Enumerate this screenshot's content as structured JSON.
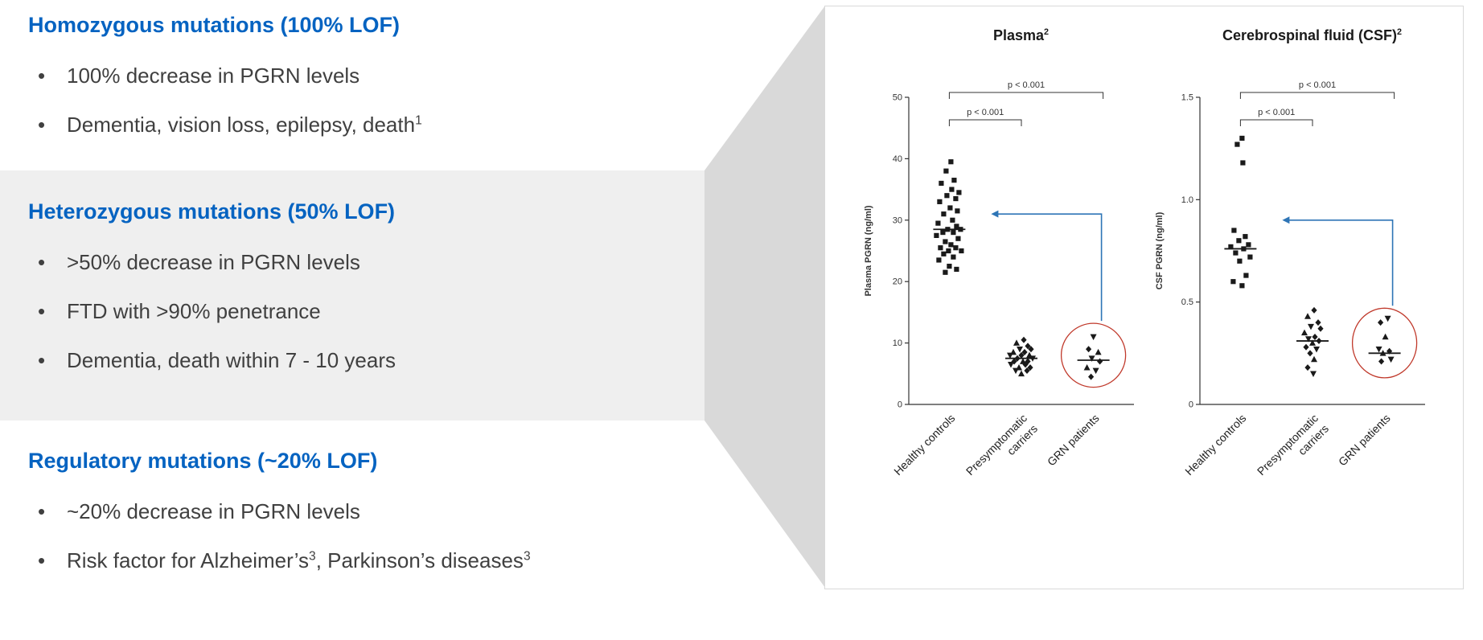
{
  "colors": {
    "heading_blue": "#0563C1",
    "body_text": "#404040",
    "band_gray": "#EFEFEF",
    "wedge_gray": "#D9D9D9",
    "panel_border": "#D9D9D9",
    "axis_color": "#333333",
    "marker_color": "#1A1A1A",
    "arrow_blue": "#2E75B6",
    "circle_red": "#C0392B"
  },
  "sections": [
    {
      "heading": "Homozygous mutations (100% LOF)",
      "bullets": [
        [
          {
            "t": "100% decrease in PGRN levels"
          }
        ],
        [
          {
            "t": "Dementia, vision loss, epilepsy, death"
          },
          {
            "sup": "1"
          }
        ]
      ]
    },
    {
      "heading": "Heterozygous mutations (50% LOF)",
      "bullets": [
        [
          {
            "t": ">50% decrease in PGRN levels"
          }
        ],
        [
          {
            "t": "FTD with >90% penetrance"
          }
        ],
        [
          {
            "t": "Dementia, death within 7 - 10 years"
          }
        ]
      ]
    },
    {
      "heading": "Regulatory mutations (~20% LOF)",
      "bullets": [
        [
          {
            "t": "~20% decrease in PGRN levels"
          }
        ],
        [
          {
            "t": "Risk factor for Alzheimer’s"
          },
          {
            "sup": "3"
          },
          {
            "t": ", Parkinson’s diseases"
          },
          {
            "sup": "3"
          }
        ]
      ]
    }
  ],
  "chart_data": [
    {
      "type": "scatter",
      "title": "Plasma",
      "title_segments": [
        {
          "t": "Plasma"
        },
        {
          "sup": "2"
        }
      ],
      "ylabel": "Plasma PGRN (ng/ml)",
      "ylim": [
        0,
        50
      ],
      "yticks": [
        {
          "v": 0,
          "label": "0"
        },
        {
          "v": 10,
          "label": "10"
        },
        {
          "v": 20,
          "label": "20"
        },
        {
          "v": 30,
          "label": "30"
        },
        {
          "v": 40,
          "label": "40"
        },
        {
          "v": 50,
          "label": "50"
        }
      ],
      "categories": [
        "Healthy controls",
        "Presymptomatic\ncarriers",
        "GRN patients"
      ],
      "series": [
        {
          "name": "Healthy controls",
          "marker": "square",
          "mean": 28.5,
          "points": [
            [
              2,
              39.5
            ],
            [
              -4,
              38
            ],
            [
              6,
              36.5
            ],
            [
              -10,
              36
            ],
            [
              3,
              35
            ],
            [
              12,
              34.5
            ],
            [
              -3,
              34
            ],
            [
              8,
              33.5
            ],
            [
              -12,
              33
            ],
            [
              1,
              32
            ],
            [
              10,
              31.5
            ],
            [
              -7,
              31
            ],
            [
              4,
              30
            ],
            [
              -14,
              29.5
            ],
            [
              9,
              29
            ],
            [
              -2,
              28.5
            ],
            [
              14,
              28.5
            ],
            [
              -8,
              28
            ],
            [
              5,
              28
            ],
            [
              -16,
              27.5
            ],
            [
              11,
              27
            ],
            [
              -5,
              26.5
            ],
            [
              2,
              26
            ],
            [
              -11,
              25.5
            ],
            [
              8,
              25.5
            ],
            [
              -1,
              25
            ],
            [
              15,
              25
            ],
            [
              -7,
              24.5
            ],
            [
              5,
              24
            ],
            [
              -13,
              23.5
            ],
            [
              0,
              22.5
            ],
            [
              9,
              22
            ],
            [
              -5,
              21.5
            ]
          ]
        },
        {
          "name": "Presymptomatic carriers",
          "marker": "mix",
          "mean": 7.5,
          "points": [
            [
              3,
              10.5
            ],
            [
              -6,
              10
            ],
            [
              8,
              9.5
            ],
            [
              -2,
              9
            ],
            [
              12,
              9
            ],
            [
              -10,
              8.5
            ],
            [
              4,
              8.5
            ],
            [
              -14,
              8
            ],
            [
              0,
              8
            ],
            [
              10,
              8
            ],
            [
              -5,
              7.5
            ],
            [
              14,
              7.5
            ],
            [
              -9,
              7
            ],
            [
              2,
              7
            ],
            [
              8,
              7
            ],
            [
              -13,
              6.5
            ],
            [
              5,
              6.5
            ],
            [
              -3,
              6
            ],
            [
              11,
              6
            ],
            [
              -7,
              5.5
            ],
            [
              7,
              5.5
            ],
            [
              0,
              5
            ]
          ]
        },
        {
          "name": "GRN patients",
          "marker": "mix2",
          "mean": 7.2,
          "points": [
            [
              0,
              11
            ],
            [
              -6,
              9
            ],
            [
              6,
              8.5
            ],
            [
              -2,
              7.5
            ],
            [
              8,
              7
            ],
            [
              -8,
              6
            ],
            [
              3,
              5.5
            ],
            [
              -3,
              4.5
            ]
          ]
        }
      ],
      "brackets": [
        {
          "from": 0,
          "to": 1,
          "label": "p < 0.001",
          "level": 1
        },
        {
          "from": 0,
          "to": 2,
          "label": "p < 0.001",
          "level": 2
        }
      ],
      "annotations": {
        "circle": {
          "group_index": 2,
          "center_value": 8,
          "ry_value": 5.2
        },
        "arrow": {
          "elbow_value": 31,
          "tip_group": 0,
          "tip_dx": 52
        }
      }
    },
    {
      "type": "scatter",
      "title": "Cerebrospinal fluid (CSF)",
      "title_segments": [
        {
          "t": "Cerebrospinal fluid (CSF)"
        },
        {
          "sup": "2"
        }
      ],
      "ylabel": "CSF PGRN (ng/ml)",
      "ylim": [
        0,
        1.5
      ],
      "yticks": [
        {
          "v": 0,
          "label": "0"
        },
        {
          "v": 0.5,
          "label": "0.5"
        },
        {
          "v": 1.0,
          "label": "1.0"
        },
        {
          "v": 1.5,
          "label": "1.5"
        }
      ],
      "categories": [
        "Healthy controls",
        "Presymptomatic\ncarriers",
        "GRN patients"
      ],
      "series": [
        {
          "name": "Healthy controls",
          "marker": "square",
          "mean": 0.76,
          "points": [
            [
              2,
              1.3
            ],
            [
              -4,
              1.27
            ],
            [
              3,
              1.18
            ],
            [
              -8,
              0.85
            ],
            [
              6,
              0.82
            ],
            [
              -2,
              0.8
            ],
            [
              10,
              0.78
            ],
            [
              -12,
              0.77
            ],
            [
              4,
              0.76
            ],
            [
              -6,
              0.74
            ],
            [
              12,
              0.72
            ],
            [
              -1,
              0.7
            ],
            [
              7,
              0.63
            ],
            [
              -9,
              0.6
            ],
            [
              2,
              0.58
            ]
          ]
        },
        {
          "name": "Presymptomatic carriers",
          "marker": "mix",
          "mean": 0.31,
          "points": [
            [
              2,
              0.46
            ],
            [
              -6,
              0.43
            ],
            [
              7,
              0.4
            ],
            [
              -2,
              0.38
            ],
            [
              10,
              0.37
            ],
            [
              -10,
              0.35
            ],
            [
              3,
              0.33
            ],
            [
              -5,
              0.32
            ],
            [
              8,
              0.31
            ],
            [
              0,
              0.3
            ],
            [
              -8,
              0.28
            ],
            [
              5,
              0.27
            ],
            [
              -3,
              0.25
            ],
            [
              2,
              0.22
            ],
            [
              -6,
              0.18
            ],
            [
              1,
              0.15
            ]
          ]
        },
        {
          "name": "GRN patients",
          "marker": "mix2",
          "mean": 0.25,
          "points": [
            [
              4,
              0.42
            ],
            [
              -5,
              0.4
            ],
            [
              1,
              0.33
            ],
            [
              -7,
              0.27
            ],
            [
              6,
              0.26
            ],
            [
              -2,
              0.25
            ],
            [
              8,
              0.22
            ],
            [
              -4,
              0.21
            ]
          ]
        }
      ],
      "brackets": [
        {
          "from": 0,
          "to": 1,
          "label": "p < 0.001",
          "level": 1
        },
        {
          "from": 0,
          "to": 2,
          "label": "p < 0.001",
          "level": 2
        }
      ],
      "annotations": {
        "circle": {
          "group_index": 2,
          "center_value": 0.3,
          "ry_value": 0.17
        },
        "arrow": {
          "elbow_value": 0.9,
          "tip_group": 0,
          "tip_dx": 52
        }
      }
    }
  ]
}
